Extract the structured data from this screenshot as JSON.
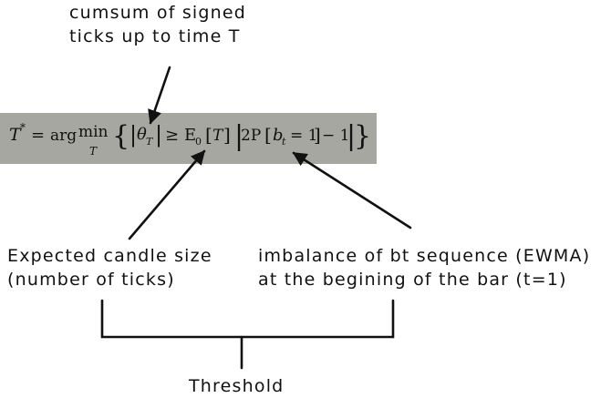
{
  "annotations": {
    "top": [
      "cumsum of signed",
      "ticks up to time T"
    ],
    "left": [
      "Expected candle size",
      "(number of ticks)"
    ],
    "right": [
      "imbalance of bt sequence (EWMA)",
      "at the begining of the bar (t=1)"
    ],
    "bottom": "Threshold"
  },
  "formula": {
    "lhs": "T",
    "star": "*",
    "eq": "=",
    "arg": "arg",
    "min": "min",
    "min_sub": "T",
    "lbrace": "{",
    "bar1": "|",
    "theta": "θ",
    "theta_sub": "T",
    "bar2": "|",
    "geq": "≥",
    "expect": "E",
    "expect_sub": "0",
    "lbrack1": "[",
    "T_arg": "T",
    "rbrack1": "]",
    "bar3": "|",
    "two_p": "2P",
    "lbrack2": "[",
    "b": "b",
    "b_sub": "t",
    "eq_one": "= 1",
    "rbrack2": "]",
    "minus_one": "− 1",
    "bar4": "|",
    "rbrace": "}"
  },
  "colors": {
    "formula_band": "#a7a7a2",
    "ink": "#111111"
  }
}
